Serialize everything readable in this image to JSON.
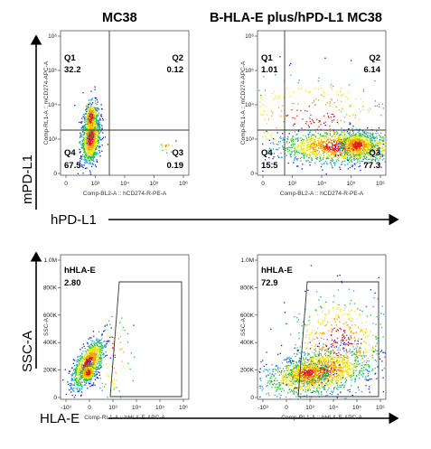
{
  "figure": {
    "col_titles": [
      "MC38",
      "B-HLA-E plus/hPD-L1 MC38"
    ],
    "row1_ylabel": "mPD-L1",
    "row1_xlabel": "hPD-L1",
    "row2_ylabel": "SSC-A",
    "row2_xlabel": "HLA-E"
  },
  "colors": {
    "high": "#e0201c",
    "mid_high": "#f5a000",
    "mid": "#e8e800",
    "mid_low": "#20c040",
    "low": "#20a0e0",
    "sparse": "#1020d0",
    "axis": "#000000"
  },
  "chart_data": [
    {
      "type": "scatter",
      "subtype": "flow-cytometry-density-quadrant",
      "title": "MC38",
      "xlabel": "Comp-BL2-A :: hCD274-R-PE-A",
      "ylabel": "Comp-RL1-A :: mCD274-APC-A",
      "x_ticks": [
        "0",
        "10^3",
        "10^4",
        "10^5",
        "10^6"
      ],
      "y_ticks": [
        "0",
        "10^3",
        "10^4",
        "10^5",
        "10^6"
      ],
      "quadrants": [
        {
          "name": "Q1",
          "value": "32.2"
        },
        {
          "name": "Q2",
          "value": "0.12"
        },
        {
          "name": "Q3",
          "value": "0.19"
        },
        {
          "name": "Q4",
          "value": "67.5"
        }
      ]
    },
    {
      "type": "scatter",
      "subtype": "flow-cytometry-density-quadrant",
      "title": "B-HLA-E plus/hPD-L1 MC38",
      "xlabel": "Comp-BL2-A :: hCD274-R-PE-A",
      "ylabel": "Comp-RL1-A :: mCD274-APC-A",
      "x_ticks": [
        "0",
        "10^3",
        "10^4",
        "10^5",
        "10^6"
      ],
      "y_ticks": [
        "0",
        "10^3",
        "10^4",
        "10^5",
        "10^6"
      ],
      "quadrants": [
        {
          "name": "Q1",
          "value": "1.01"
        },
        {
          "name": "Q2",
          "value": "6.14"
        },
        {
          "name": "Q3",
          "value": "77.3"
        },
        {
          "name": "Q4",
          "value": "15.5"
        }
      ]
    },
    {
      "type": "scatter",
      "subtype": "flow-cytometry-density-gate",
      "title": "MC38",
      "xlabel": "Comp-RL1-A :: hHLA-E-APC-A",
      "ylabel": "SSC-A",
      "x_ticks": [
        "-10^3",
        "0",
        "10^3",
        "10^4",
        "10^5",
        "10^6"
      ],
      "y_ticks": [
        "0",
        "200K",
        "400K",
        "600K",
        "800K",
        "1.0M"
      ],
      "gate": {
        "name": "hHLA-E",
        "value": "2.80"
      }
    },
    {
      "type": "scatter",
      "subtype": "flow-cytometry-density-gate",
      "title": "B-HLA-E plus/hPD-L1 MC38",
      "xlabel": "Comp-RL1-A :: hHLA-E-APC-A",
      "ylabel": "SSC-A",
      "x_ticks": [
        "-10^3",
        "0",
        "10^3",
        "10^4",
        "10^5",
        "10^6"
      ],
      "y_ticks": [
        "0",
        "200K",
        "400K",
        "600K",
        "800K",
        "1.0M"
      ],
      "gate": {
        "name": "hHLA-E",
        "value": "72.9"
      }
    }
  ]
}
